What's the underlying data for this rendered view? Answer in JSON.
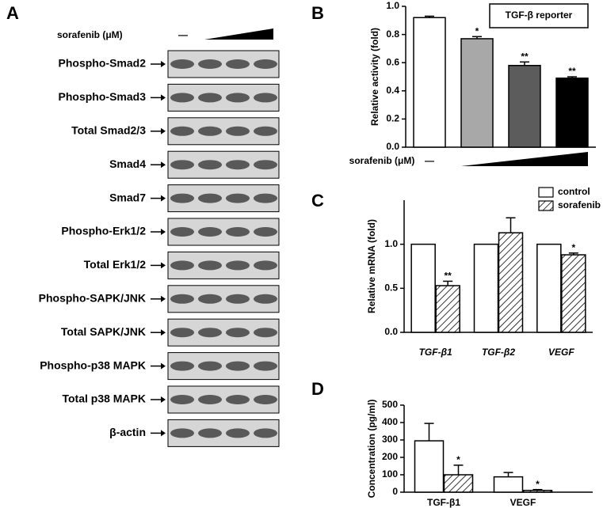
{
  "blot": {
    "panel_label": "A",
    "treatment_label": "sorafenib (μM)",
    "control_marker": "—",
    "rows": [
      "Phospho-Smad2",
      "Phospho-Smad3",
      "Total Smad2/3",
      "Smad4",
      "Smad7",
      "Phospho-Erk1/2",
      "Total Erk1/2",
      "Phospho-SAPK/JNK",
      "Total SAPK/JNK",
      "Phospho-p38 MAPK",
      "Total p38 MAPK",
      "β-actin"
    ]
  },
  "chart_data": [
    {
      "type": "bar",
      "panel_label": "B",
      "annotation": "TGF-β reporter",
      "ylabel": "Relative activity (fold)",
      "xlabel": "sorafenib (μM)",
      "categories": [
        "—",
        null,
        null,
        null
      ],
      "values": [
        0.92,
        0.77,
        0.58,
        0.49
      ],
      "errors": [
        0.01,
        0.015,
        0.025,
        0.01
      ],
      "colors": [
        "#ffffff",
        "#a8a8a8",
        "#5c5c5c",
        "#000000"
      ],
      "significance": [
        null,
        "*",
        "**",
        "**"
      ],
      "ylim": [
        0,
        1.0
      ],
      "yticks": [
        {
          "value": 0,
          "label": "0.0"
        },
        0.2,
        0.4,
        0.6,
        0.8,
        {
          "value": 1.0,
          "label": "1.0"
        }
      ]
    },
    {
      "type": "grouped_bar",
      "panel_label": "C",
      "ylabel": "Relative mRNA (fold)",
      "legend": true,
      "italic_categories": true,
      "categories": [
        "TGF-β1",
        "TGF-β2",
        "VEGF"
      ],
      "series": [
        {
          "name": "control",
          "color": "#ffffff",
          "values": [
            1,
            1,
            1
          ]
        },
        {
          "name": "sorafenib",
          "color": "#ffffff",
          "hatch": true,
          "values": [
            0.53,
            1.13,
            0.88
          ],
          "errors": [
            0.05,
            0.17,
            0.02
          ],
          "significance": [
            "**",
            null,
            "*"
          ]
        }
      ],
      "ylim": [
        0,
        1.5
      ],
      "yticks": [
        {
          "value": 0,
          "label": "0.0"
        },
        0.5,
        {
          "value": 1.0,
          "label": "1.0"
        }
      ]
    },
    {
      "type": "grouped_bar",
      "panel_label": "D",
      "ylabel": "Concentration (pg/ml)",
      "legend": false,
      "italic_categories": false,
      "categories": [
        "TGF-β1",
        "VEGF"
      ],
      "series": [
        {
          "name": "control",
          "color": "#ffffff",
          "values": [
            295,
            88
          ],
          "errors": [
            100,
            25
          ]
        },
        {
          "name": "sorafenib",
          "color": "#ffffff",
          "hatch": true,
          "values": [
            100,
            10
          ],
          "errors": [
            55,
            5
          ],
          "significance": [
            "*",
            "*"
          ]
        }
      ],
      "ylim": [
        0,
        500
      ],
      "yticks": [
        0,
        100,
        200,
        300,
        400,
        500
      ]
    }
  ]
}
